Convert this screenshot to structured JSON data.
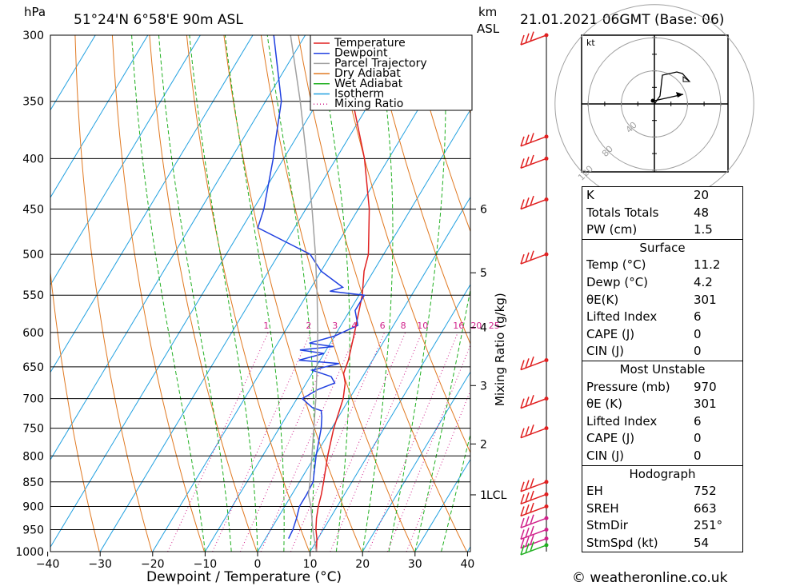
{
  "header": {
    "pressure_unit": "hPa",
    "location": "51°24'N  6°58'E  90m  ASL",
    "km_label": "km",
    "asl_label": "ASL",
    "datetime": "21.01.2021  06GMT  (Base: 06)"
  },
  "footer": {
    "copyright": "© weatheronline.co.uk"
  },
  "chart_data": {
    "type": "line",
    "chart_kind": "skew-T log-P diagram",
    "xlabel": "Dewpoint / Temperature (°C)",
    "ylabel": "hPa",
    "right_axis_label": "Mixing Ratio (g/kg)",
    "x_ticks": [
      -40,
      -30,
      -20,
      -10,
      0,
      10,
      20,
      30,
      40
    ],
    "x_tick_labels": [
      "−40",
      "−30",
      "−20",
      "−10",
      "0",
      "10",
      "20",
      "30",
      "40"
    ],
    "pressure_levels": [
      300,
      350,
      400,
      450,
      500,
      550,
      600,
      650,
      700,
      750,
      800,
      850,
      900,
      950,
      1000
    ],
    "height_ticks_km": [
      {
        "label": "6",
        "p": 450
      },
      {
        "label": "5",
        "p": 522
      },
      {
        "label": "4",
        "p": 593
      },
      {
        "label": "3",
        "p": 679
      },
      {
        "label": "2",
        "p": 778
      },
      {
        "label": "1",
        "p": 876
      }
    ],
    "lcl": {
      "label": "LCL",
      "p": 876
    },
    "mixing_ratio_labels": [
      "1",
      "2",
      "3",
      "4",
      "6",
      "8",
      "10",
      "16",
      "20",
      "25"
    ],
    "mixing_ratio_values": [
      1,
      2,
      3,
      4,
      6,
      8,
      10,
      16,
      20,
      25
    ],
    "legend": [
      {
        "name": "Temperature",
        "color": "#e02020",
        "style": "solid"
      },
      {
        "name": "Dewpoint",
        "color": "#2040e0",
        "style": "solid"
      },
      {
        "name": "Parcel Trajectory",
        "color": "#a0a0a0",
        "style": "solid"
      },
      {
        "name": "Dry Adiabat",
        "color": "#e07820",
        "style": "solid"
      },
      {
        "name": "Wet Adiabat",
        "color": "#20b020",
        "style": "solid"
      },
      {
        "name": "Isotherm",
        "color": "#20a0e0",
        "style": "solid"
      },
      {
        "name": "Mixing Ratio",
        "color": "#d0208a",
        "style": "dotted"
      }
    ],
    "series": [
      {
        "name": "Temperature",
        "points": [
          [
            1000,
            11.2
          ],
          [
            970,
            9.8
          ],
          [
            950,
            8.6
          ],
          [
            925,
            7.4
          ],
          [
            900,
            6.4
          ],
          [
            875,
            5.6
          ],
          [
            850,
            4.6
          ],
          [
            800,
            2.4
          ],
          [
            750,
            0.4
          ],
          [
            700,
            -1.2
          ],
          [
            675,
            -2.6
          ],
          [
            660,
            -4.0
          ],
          [
            640,
            -4.6
          ],
          [
            600,
            -6.6
          ],
          [
            550,
            -9.4
          ],
          [
            520,
            -11.8
          ],
          [
            500,
            -12.9
          ],
          [
            450,
            -17.9
          ],
          [
            400,
            -24.6
          ],
          [
            350,
            -33.4
          ],
          [
            300,
            -42.6
          ]
        ]
      },
      {
        "name": "Dewpoint",
        "points": [
          [
            970,
            4.4
          ],
          [
            950,
            4.2
          ],
          [
            925,
            3.6
          ],
          [
            900,
            2.8
          ],
          [
            875,
            2.8
          ],
          [
            850,
            2.6
          ],
          [
            800,
            0.2
          ],
          [
            750,
            -2.0
          ],
          [
            730,
            -3.2
          ],
          [
            720,
            -4.0
          ],
          [
            715,
            -6.0
          ],
          [
            700,
            -9.0
          ],
          [
            685,
            -7.0
          ],
          [
            675,
            -4.6
          ],
          [
            665,
            -6.0
          ],
          [
            655,
            -10.4
          ],
          [
            645,
            -6.0
          ],
          [
            640,
            -14.0
          ],
          [
            630,
            -10.0
          ],
          [
            625,
            -15.0
          ],
          [
            620,
            -9.0
          ],
          [
            615,
            -14.0
          ],
          [
            605,
            -10.0
          ],
          [
            590,
            -6.8
          ],
          [
            570,
            -9.0
          ],
          [
            550,
            -9.0
          ],
          [
            545,
            -16.0
          ],
          [
            540,
            -14.0
          ],
          [
            520,
            -20.0
          ],
          [
            500,
            -24.0
          ],
          [
            470,
            -37.0
          ],
          [
            450,
            -38.0
          ],
          [
            400,
            -42.0
          ],
          [
            390,
            -43.0
          ],
          [
            350,
            -47.0
          ],
          [
            300,
            -56.0
          ]
        ]
      },
      {
        "name": "Parcel Trajectory",
        "points": [
          [
            1000,
            11.2
          ],
          [
            950,
            8.0
          ],
          [
            900,
            5.0
          ],
          [
            876,
            3.2
          ],
          [
            850,
            2.0
          ],
          [
            800,
            -0.6
          ],
          [
            750,
            -3.4
          ],
          [
            700,
            -6.4
          ],
          [
            650,
            -9.8
          ],
          [
            600,
            -13.6
          ],
          [
            550,
            -18.0
          ],
          [
            500,
            -23.0
          ],
          [
            450,
            -28.8
          ],
          [
            400,
            -35.6
          ],
          [
            350,
            -43.4
          ],
          [
            300,
            -52.8
          ]
        ]
      }
    ],
    "wind_barbs": [
      {
        "p": 300,
        "color": "#e02020"
      },
      {
        "p": 380,
        "color": "#e02020"
      },
      {
        "p": 400,
        "color": "#e02020"
      },
      {
        "p": 440,
        "color": "#e02020"
      },
      {
        "p": 500,
        "color": "#e02020"
      },
      {
        "p": 640,
        "color": "#e02020"
      },
      {
        "p": 700,
        "color": "#e02020"
      },
      {
        "p": 750,
        "color": "#e02020"
      },
      {
        "p": 850,
        "color": "#e02020"
      },
      {
        "p": 875,
        "color": "#e02020"
      },
      {
        "p": 900,
        "color": "#e02020"
      },
      {
        "p": 925,
        "color": "#d0208a"
      },
      {
        "p": 950,
        "color": "#d0208a"
      },
      {
        "p": 970,
        "color": "#d0208a"
      },
      {
        "p": 985,
        "color": "#20b020"
      }
    ],
    "hodograph": {
      "unit_label": "kt",
      "ring_labels": [
        "40",
        "80",
        "120"
      ],
      "ring_values_kt": [
        40,
        80,
        120
      ]
    }
  },
  "indices": {
    "general": [
      {
        "label": "K",
        "value": "20"
      },
      {
        "label": "Totals Totals",
        "value": "48"
      },
      {
        "label": "PW (cm)",
        "value": "1.5"
      }
    ],
    "surface_title": "Surface",
    "surface": [
      {
        "label": "Temp (°C)",
        "value": "11.2"
      },
      {
        "label": "Dewp (°C)",
        "value": "4.2"
      },
      {
        "label": "θE(K)",
        "value": "301"
      },
      {
        "label": "Lifted Index",
        "value": "6"
      },
      {
        "label": "CAPE (J)",
        "value": "0"
      },
      {
        "label": "CIN (J)",
        "value": "0"
      }
    ],
    "unstable_title": "Most Unstable",
    "unstable": [
      {
        "label": "Pressure (mb)",
        "value": "970"
      },
      {
        "label": "θE (K)",
        "value": "301"
      },
      {
        "label": "Lifted Index",
        "value": "6"
      },
      {
        "label": "CAPE (J)",
        "value": "0"
      },
      {
        "label": "CIN (J)",
        "value": "0"
      }
    ],
    "hodo_title": "Hodograph",
    "hodo": [
      {
        "label": "EH",
        "value": "752"
      },
      {
        "label": "SREH",
        "value": "663"
      },
      {
        "label": "StmDir",
        "value": "251°"
      },
      {
        "label": "StmSpd (kt)",
        "value": "54"
      }
    ]
  }
}
